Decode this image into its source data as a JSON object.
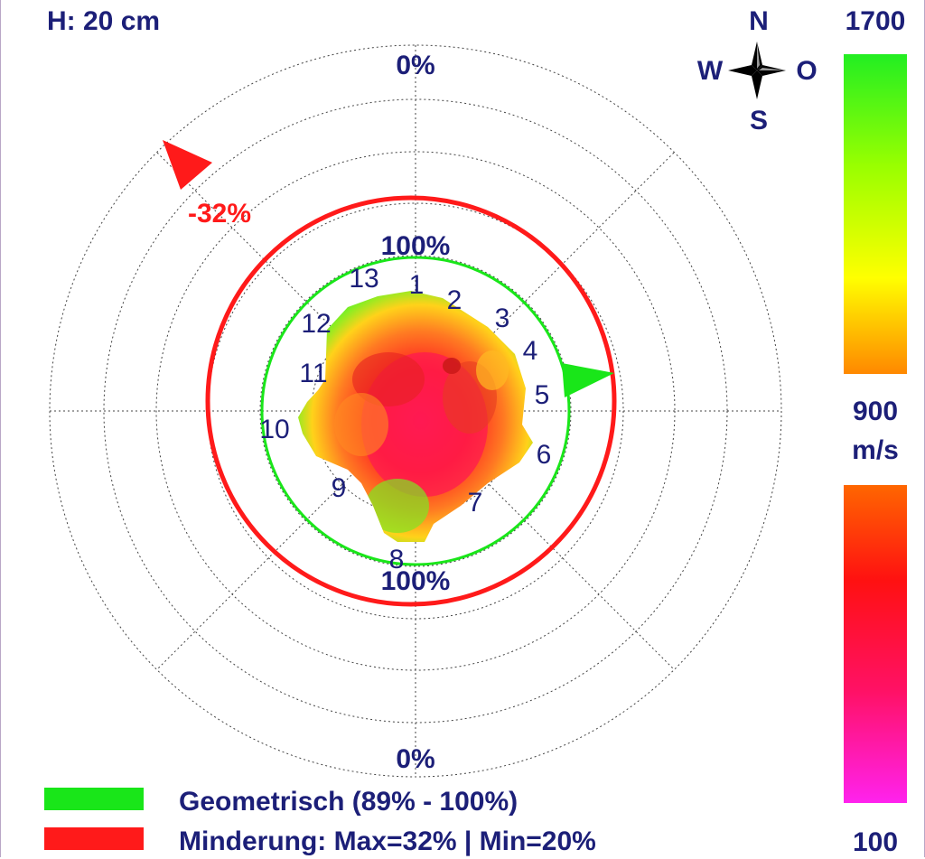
{
  "header": {
    "height_label": "H: 20 cm"
  },
  "compass": {
    "north": "N",
    "south": "S",
    "west": "W",
    "east": "O"
  },
  "ring_labels": {
    "outer_top": "0%",
    "outer_bottom": "0%",
    "inner_top": "100%",
    "inner_bottom": "100%"
  },
  "red_marker": {
    "label": "-32%",
    "color": "#ff1a1a"
  },
  "green_marker": {
    "color": "#19e619"
  },
  "sensors": [
    "1",
    "2",
    "3",
    "4",
    "5",
    "6",
    "7",
    "8",
    "9",
    "10",
    "11",
    "12",
    "13"
  ],
  "scale": {
    "top_value": "1700",
    "mid_value": "900",
    "unit": "m/s",
    "bottom_value": "100",
    "upper_gradient": [
      "#22ee22",
      "#99ff00",
      "#ffff00",
      "#ff8800"
    ],
    "lower_gradient": [
      "#ff6600",
      "#ff1111",
      "#ff1166",
      "#ff22ee"
    ]
  },
  "legend": [
    {
      "label": "Geometrisch (89% - 100%)",
      "color": "#19e619"
    },
    {
      "label": "Minderung: Max=32% | Min=20%",
      "color": "#ff1a1a"
    }
  ],
  "chart_data": {
    "type": "polar-velocity-map",
    "height": "H: 20 cm",
    "sensor_count": 13,
    "velocity_scale_ms": {
      "max": 1700,
      "mid": 900,
      "min": 100
    },
    "geometric_range_pct": [
      89,
      100
    ],
    "reduction_pct": {
      "max": 32,
      "min": 20
    }
  }
}
